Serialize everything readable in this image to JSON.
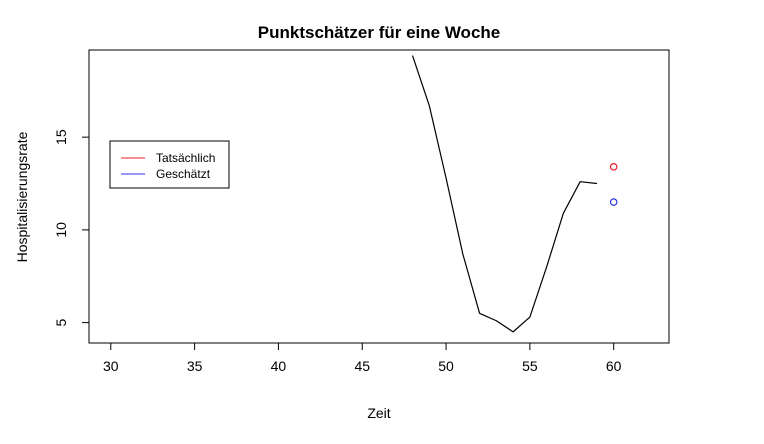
{
  "chart_data": {
    "type": "line",
    "title": "Punktschätzer für eine Woche",
    "xlabel": "Zeit",
    "ylabel": "Hospitalisierungsrate",
    "xlim": [
      28.7,
      63.3
    ],
    "ylim": [
      3.9,
      19.7
    ],
    "x_ticks": [
      30,
      35,
      40,
      45,
      50,
      55,
      60
    ],
    "y_ticks": [
      5,
      10,
      15
    ],
    "grid": false,
    "legend_position": "left",
    "series": [
      {
        "style": "line",
        "color": "#000000",
        "x": [
          48,
          49,
          50,
          51,
          52,
          53,
          54,
          55,
          56,
          57,
          58,
          59
        ],
        "y": [
          19.4,
          16.7,
          12.8,
          8.7,
          5.5,
          5.1,
          4.5,
          5.3,
          8.0,
          10.9,
          12.6,
          12.5
        ]
      },
      {
        "name": "Tatsächlich",
        "style": "point",
        "color": "#e8202a",
        "x": [
          60
        ],
        "y": [
          13.4
        ]
      },
      {
        "name": "Geschätzt",
        "style": "point",
        "color": "#2a35e6",
        "x": [
          60
        ],
        "y": [
          11.5
        ]
      }
    ],
    "legend": [
      {
        "label": "Tatsächlich",
        "color": "#e8202a"
      },
      {
        "label": "Geschätzt",
        "color": "#2a35e6"
      }
    ]
  }
}
